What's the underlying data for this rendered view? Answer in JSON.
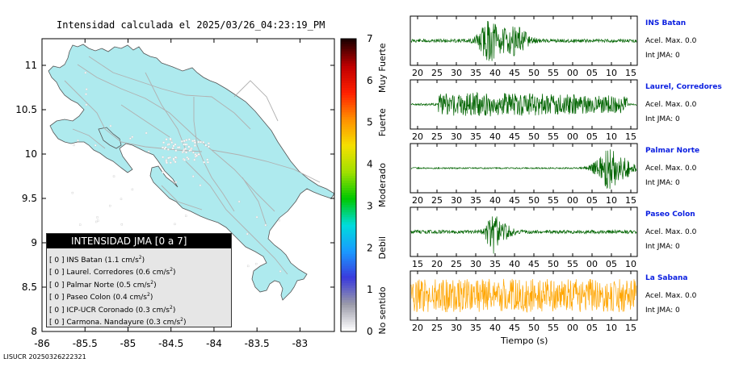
{
  "title": "Intensidad calculada el 2025/03/26_04:23:19_PM",
  "footer": "LISUCR 20250326222321",
  "map": {
    "x_ticks": [
      "-86",
      "-85.5",
      "-85",
      "-84.5",
      "-84",
      "-83.5",
      "-83"
    ],
    "y_ticks": [
      "11",
      "10.5",
      "10",
      "9.5",
      "9",
      "8.5",
      "8"
    ],
    "x_range": [
      -86,
      -82.6
    ],
    "y_range": [
      8,
      11.3
    ],
    "land_color": "#aeeaee",
    "sea_color": "#ffffff"
  },
  "colorbar": {
    "ticks": [
      "0",
      "1",
      "2",
      "3",
      "4",
      "5",
      "6",
      "7"
    ],
    "categories": [
      "No sentido",
      "Debil",
      "Moderado",
      "Fuerte",
      "Muy Fuerte"
    ],
    "colors": [
      "#ffffff",
      "#9a9aa8",
      "#3a3adc",
      "#1a9aff",
      "#00dcdc",
      "#00c800",
      "#a0e000",
      "#f5e000",
      "#ff9000",
      "#ff2000",
      "#c00000",
      "#200000"
    ]
  },
  "legend": {
    "header": "INTENSIDAD JMA [0 a 7]",
    "rows": [
      {
        "prefix": "[ 0 ]",
        "station": "INS Batan",
        "accel": "(1.1 cm/s",
        "sup": "2",
        "close": ")"
      },
      {
        "prefix": "[ 0 ]",
        "station": "Laurel. Corredores",
        "accel": "(0.6 cm/s",
        "sup": "2",
        "close": ")"
      },
      {
        "prefix": "[ 0 ]",
        "station": "Palmar Norte",
        "accel": "(0.5 cm/s",
        "sup": "2",
        "close": ")"
      },
      {
        "prefix": "[ 0 ]",
        "station": "Paseo Colon",
        "accel": "(0.4 cm/s",
        "sup": "2",
        "close": ")"
      },
      {
        "prefix": "[ 0 ]",
        "station": "ICP-UCR Coronado",
        "accel": "(0.3 cm/s",
        "sup": "2",
        "close": ")"
      },
      {
        "prefix": "[ 0 ]",
        "station": "Carmona. Nandayure",
        "accel": "(0.3 cm/s",
        "sup": "2",
        "close": ")"
      }
    ]
  },
  "stations": [
    {
      "name": "INS Batan",
      "accel_label": "Acel. Max. 0.0",
      "int_label": "Int JMA: 0",
      "ticks": [
        "20",
        "25",
        "30",
        "35",
        "40",
        "45",
        "50",
        "55",
        "00",
        "05",
        "10",
        "15"
      ],
      "color": "#006400"
    },
    {
      "name": "Laurel, Corredores",
      "accel_label": "Acel. Max. 0.0",
      "int_label": "Int JMA: 0",
      "ticks": [
        "20",
        "25",
        "30",
        "35",
        "40",
        "45",
        "50",
        "55",
        "00",
        "05",
        "10",
        "15"
      ],
      "color": "#006400"
    },
    {
      "name": "Palmar Norte",
      "accel_label": "Acel. Max. 0.0",
      "int_label": "Int JMA: 0",
      "ticks": [
        "20",
        "25",
        "30",
        "35",
        "40",
        "45",
        "50",
        "55",
        "00",
        "05",
        "10",
        "15"
      ],
      "color": "#006400"
    },
    {
      "name": "Paseo Colon",
      "accel_label": "Acel. Max. 0.0",
      "int_label": "Int JMA: 0",
      "ticks": [
        "15",
        "20",
        "25",
        "30",
        "35",
        "40",
        "45",
        "50",
        "55",
        "00",
        "05",
        "10"
      ],
      "color": "#006400"
    },
    {
      "name": "La Sabana",
      "accel_label": "Acel. Max. 0.0",
      "int_label": "Int JMA: 0",
      "ticks": [
        "20",
        "25",
        "30",
        "35",
        "40",
        "45",
        "50",
        "55",
        "00",
        "05",
        "10",
        "15"
      ],
      "color": "#ffa500"
    }
  ],
  "time_xlabel": "Tiempo (s)"
}
